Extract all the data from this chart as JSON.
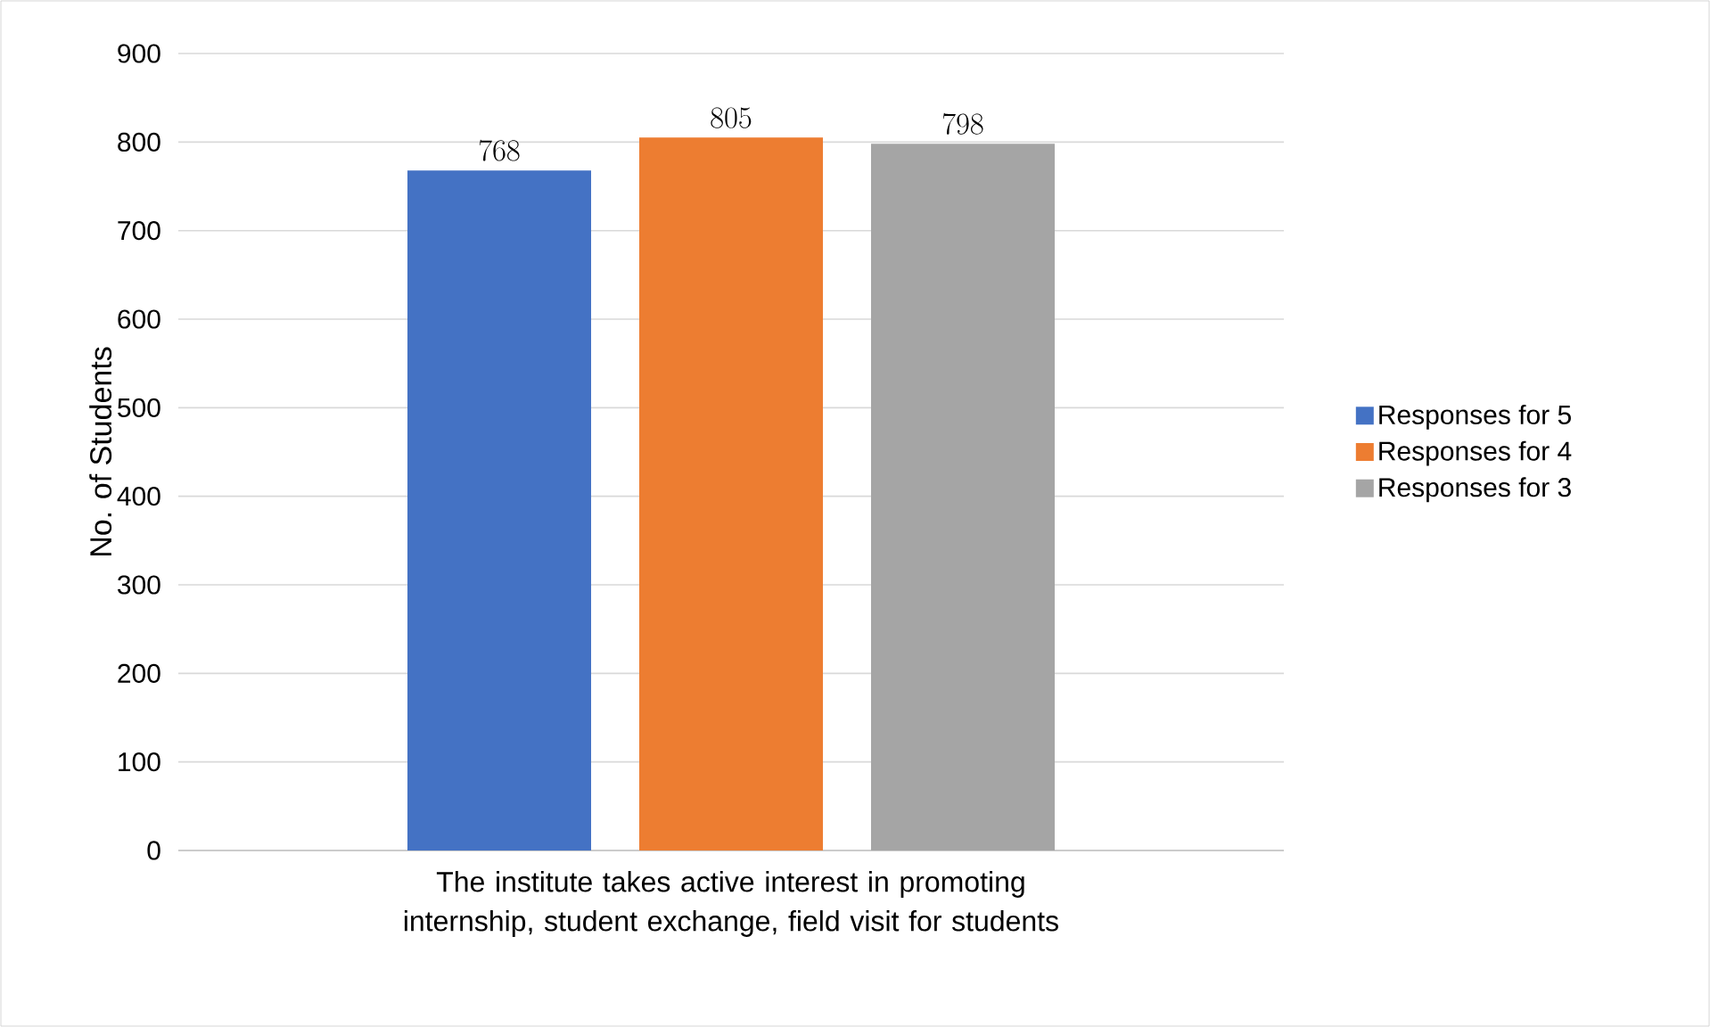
{
  "chart_data": {
    "type": "bar",
    "ylabel": "No. of Students",
    "categories": [
      "The institute takes active interest in promoting internship, student exchange, field visit for students"
    ],
    "series": [
      {
        "name": "Responses for 5",
        "color": "#4472c4",
        "values": [
          768
        ]
      },
      {
        "name": "Responses for 4",
        "color": "#ed7d31",
        "values": [
          805
        ]
      },
      {
        "name": "Responses for 3",
        "color": "#a5a5a5",
        "values": [
          798
        ]
      }
    ],
    "ylim": [
      0,
      900
    ],
    "yticks": [
      0,
      100,
      200,
      300,
      400,
      500,
      600,
      700,
      800,
      900
    ],
    "grid": "y",
    "legend": "right",
    "data_labels": true
  }
}
